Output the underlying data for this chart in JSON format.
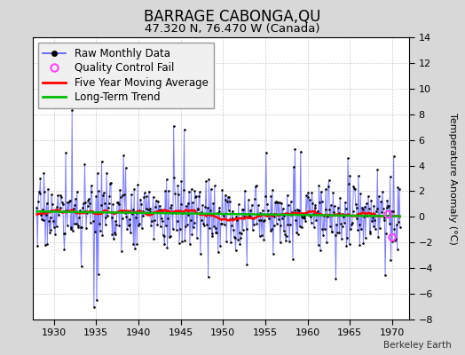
{
  "title": "BARRAGE CABONGA,QU",
  "subtitle": "47.320 N, 76.470 W (Canada)",
  "ylabel": "Temperature Anomaly (°C)",
  "watermark": "Berkeley Earth",
  "ylim": [
    -8,
    14
  ],
  "yticks": [
    -8,
    -6,
    -4,
    -2,
    0,
    2,
    4,
    6,
    8,
    10,
    12,
    14
  ],
  "xticks": [
    1930,
    1935,
    1940,
    1945,
    1950,
    1955,
    1960,
    1965,
    1970
  ],
  "xlim": [
    1927.5,
    1972
  ],
  "background_color": "#d8d8d8",
  "plot_bg_color": "#ffffff",
  "raw_line_color": "#5555ff",
  "raw_dot_color": "#000000",
  "moving_avg_color": "#ff0000",
  "trend_color": "#00bb00",
  "qc_fail_color": "#ff44ff",
  "legend_fontsize": 8.5,
  "title_fontsize": 12,
  "subtitle_fontsize": 9.5,
  "seed": 17
}
